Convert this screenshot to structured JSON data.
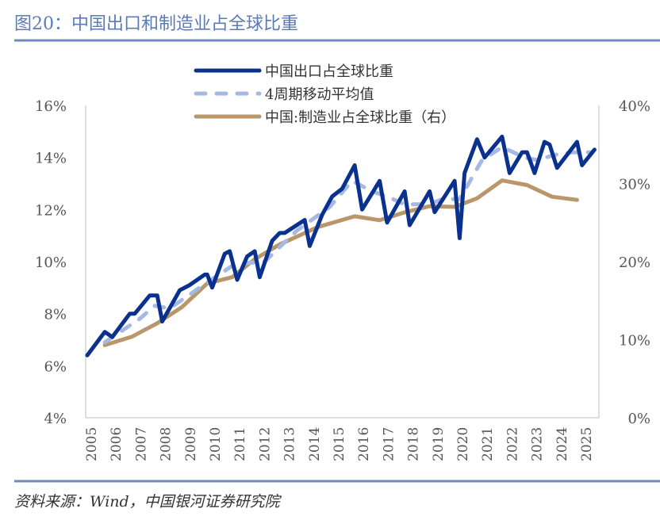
{
  "title": "图20：中国出口和制造业占全球比重",
  "source": "资料来源：Wind，中国银河证券研究院",
  "colors": {
    "title": "#5b7bb8",
    "rule": "#6f8bbd",
    "export": "#0b318f",
    "ma": "#a5b9e2",
    "manufacturing": "#b9976a"
  },
  "chart_data": {
    "type": "line",
    "title": "",
    "xlabel": "",
    "ylabel": "",
    "grid": false,
    "legend_position": "top-center",
    "x_ticks": [
      "2005",
      "2006",
      "2007",
      "2008",
      "2009",
      "2010",
      "2011",
      "2012",
      "2013",
      "2014",
      "2015",
      "2016",
      "2017",
      "2018",
      "2019",
      "2020",
      "2021",
      "2022",
      "2023",
      "2024",
      "2025"
    ],
    "y_left": {
      "ylim": [
        4,
        16
      ],
      "ticks": [
        "4%",
        "6%",
        "8%",
        "10%",
        "12%",
        "14%",
        "16%"
      ],
      "tick_values": [
        4,
        6,
        8,
        10,
        12,
        14,
        16
      ]
    },
    "y_right": {
      "ylim": [
        0,
        40
      ],
      "ticks": [
        "0%",
        "10%",
        "20%",
        "30%",
        "40%"
      ],
      "tick_values": [
        0,
        10,
        20,
        30,
        40
      ]
    },
    "series": [
      {
        "name": "中国出口占全球比重",
        "axis": "left",
        "style": "solid",
        "points": [
          [
            2005.0,
            6.4
          ],
          [
            2005.7,
            7.3
          ],
          [
            2006.0,
            7.1
          ],
          [
            2006.7,
            8.0
          ],
          [
            2006.9,
            8.0
          ],
          [
            2007.5,
            8.7
          ],
          [
            2007.8,
            8.7
          ],
          [
            2008.0,
            7.7
          ],
          [
            2008.7,
            8.9
          ],
          [
            2009.1,
            9.1
          ],
          [
            2009.7,
            9.5
          ],
          [
            2009.8,
            9.5
          ],
          [
            2010.0,
            9.0
          ],
          [
            2010.5,
            10.3
          ],
          [
            2010.7,
            10.4
          ],
          [
            2011.0,
            9.3
          ],
          [
            2011.4,
            10.2
          ],
          [
            2011.7,
            10.4
          ],
          [
            2011.9,
            9.4
          ],
          [
            2012.4,
            10.8
          ],
          [
            2012.7,
            11.1
          ],
          [
            2012.9,
            11.1
          ],
          [
            2013.7,
            11.6
          ],
          [
            2013.9,
            10.6
          ],
          [
            2014.4,
            11.8
          ],
          [
            2014.8,
            12.5
          ],
          [
            2015.2,
            12.8
          ],
          [
            2015.7,
            13.7
          ],
          [
            2016.0,
            12.0
          ],
          [
            2016.7,
            13.1
          ],
          [
            2017.0,
            11.5
          ],
          [
            2017.7,
            12.7
          ],
          [
            2017.9,
            11.4
          ],
          [
            2018.7,
            12.7
          ],
          [
            2018.9,
            11.9
          ],
          [
            2019.7,
            13.1
          ],
          [
            2019.9,
            10.9
          ],
          [
            2020.1,
            13.4
          ],
          [
            2020.6,
            14.7
          ],
          [
            2020.9,
            14.0
          ],
          [
            2021.6,
            14.8
          ],
          [
            2021.9,
            13.4
          ],
          [
            2022.4,
            14.2
          ],
          [
            2022.6,
            14.2
          ],
          [
            2022.9,
            13.4
          ],
          [
            2023.3,
            14.6
          ],
          [
            2023.5,
            14.5
          ],
          [
            2023.8,
            13.6
          ],
          [
            2024.6,
            14.6
          ],
          [
            2024.8,
            13.7
          ],
          [
            2025.3,
            14.3
          ]
        ]
      },
      {
        "name": "4周期移动平均值",
        "axis": "left",
        "style": "dashed",
        "points": [
          [
            2005.7,
            6.9
          ],
          [
            2007.1,
            7.8
          ],
          [
            2007.7,
            8.3
          ],
          [
            2008.3,
            8.2
          ],
          [
            2009.8,
            9.2
          ],
          [
            2010.9,
            9.9
          ],
          [
            2012.1,
            10.0
          ],
          [
            2013.4,
            11.2
          ],
          [
            2014.7,
            12.1
          ],
          [
            2015.6,
            13.1
          ],
          [
            2016.4,
            12.7
          ],
          [
            2017.0,
            12.5
          ],
          [
            2017.7,
            12.2
          ],
          [
            2018.7,
            12.2
          ],
          [
            2019.2,
            12.4
          ],
          [
            2019.9,
            12.4
          ],
          [
            2020.8,
            13.9
          ],
          [
            2021.6,
            14.4
          ],
          [
            2022.5,
            14.0
          ],
          [
            2023.0,
            13.9
          ],
          [
            2023.7,
            14.1
          ],
          [
            2024.4,
            14.2
          ],
          [
            2025.2,
            14.2
          ]
        ]
      },
      {
        "name": "中国:制造业占全球比重（右）",
        "axis": "right",
        "style": "solid",
        "points": [
          [
            2005.7,
            9.3
          ],
          [
            2006.8,
            10.4
          ],
          [
            2007.8,
            12.1
          ],
          [
            2008.8,
            14.2
          ],
          [
            2009.8,
            17.2
          ],
          [
            2010.8,
            18.0
          ],
          [
            2011.7,
            20.3
          ],
          [
            2012.7,
            22.2
          ],
          [
            2013.8,
            23.8
          ],
          [
            2014.2,
            24.4
          ],
          [
            2015.7,
            25.8
          ],
          [
            2016.7,
            25.3
          ],
          [
            2017.7,
            26.3
          ],
          [
            2018.7,
            27.1
          ],
          [
            2019.7,
            27.0
          ],
          [
            2020.6,
            28.1
          ],
          [
            2021.6,
            30.4
          ],
          [
            2022.6,
            29.8
          ],
          [
            2023.6,
            28.3
          ],
          [
            2024.6,
            27.9
          ]
        ]
      }
    ]
  }
}
